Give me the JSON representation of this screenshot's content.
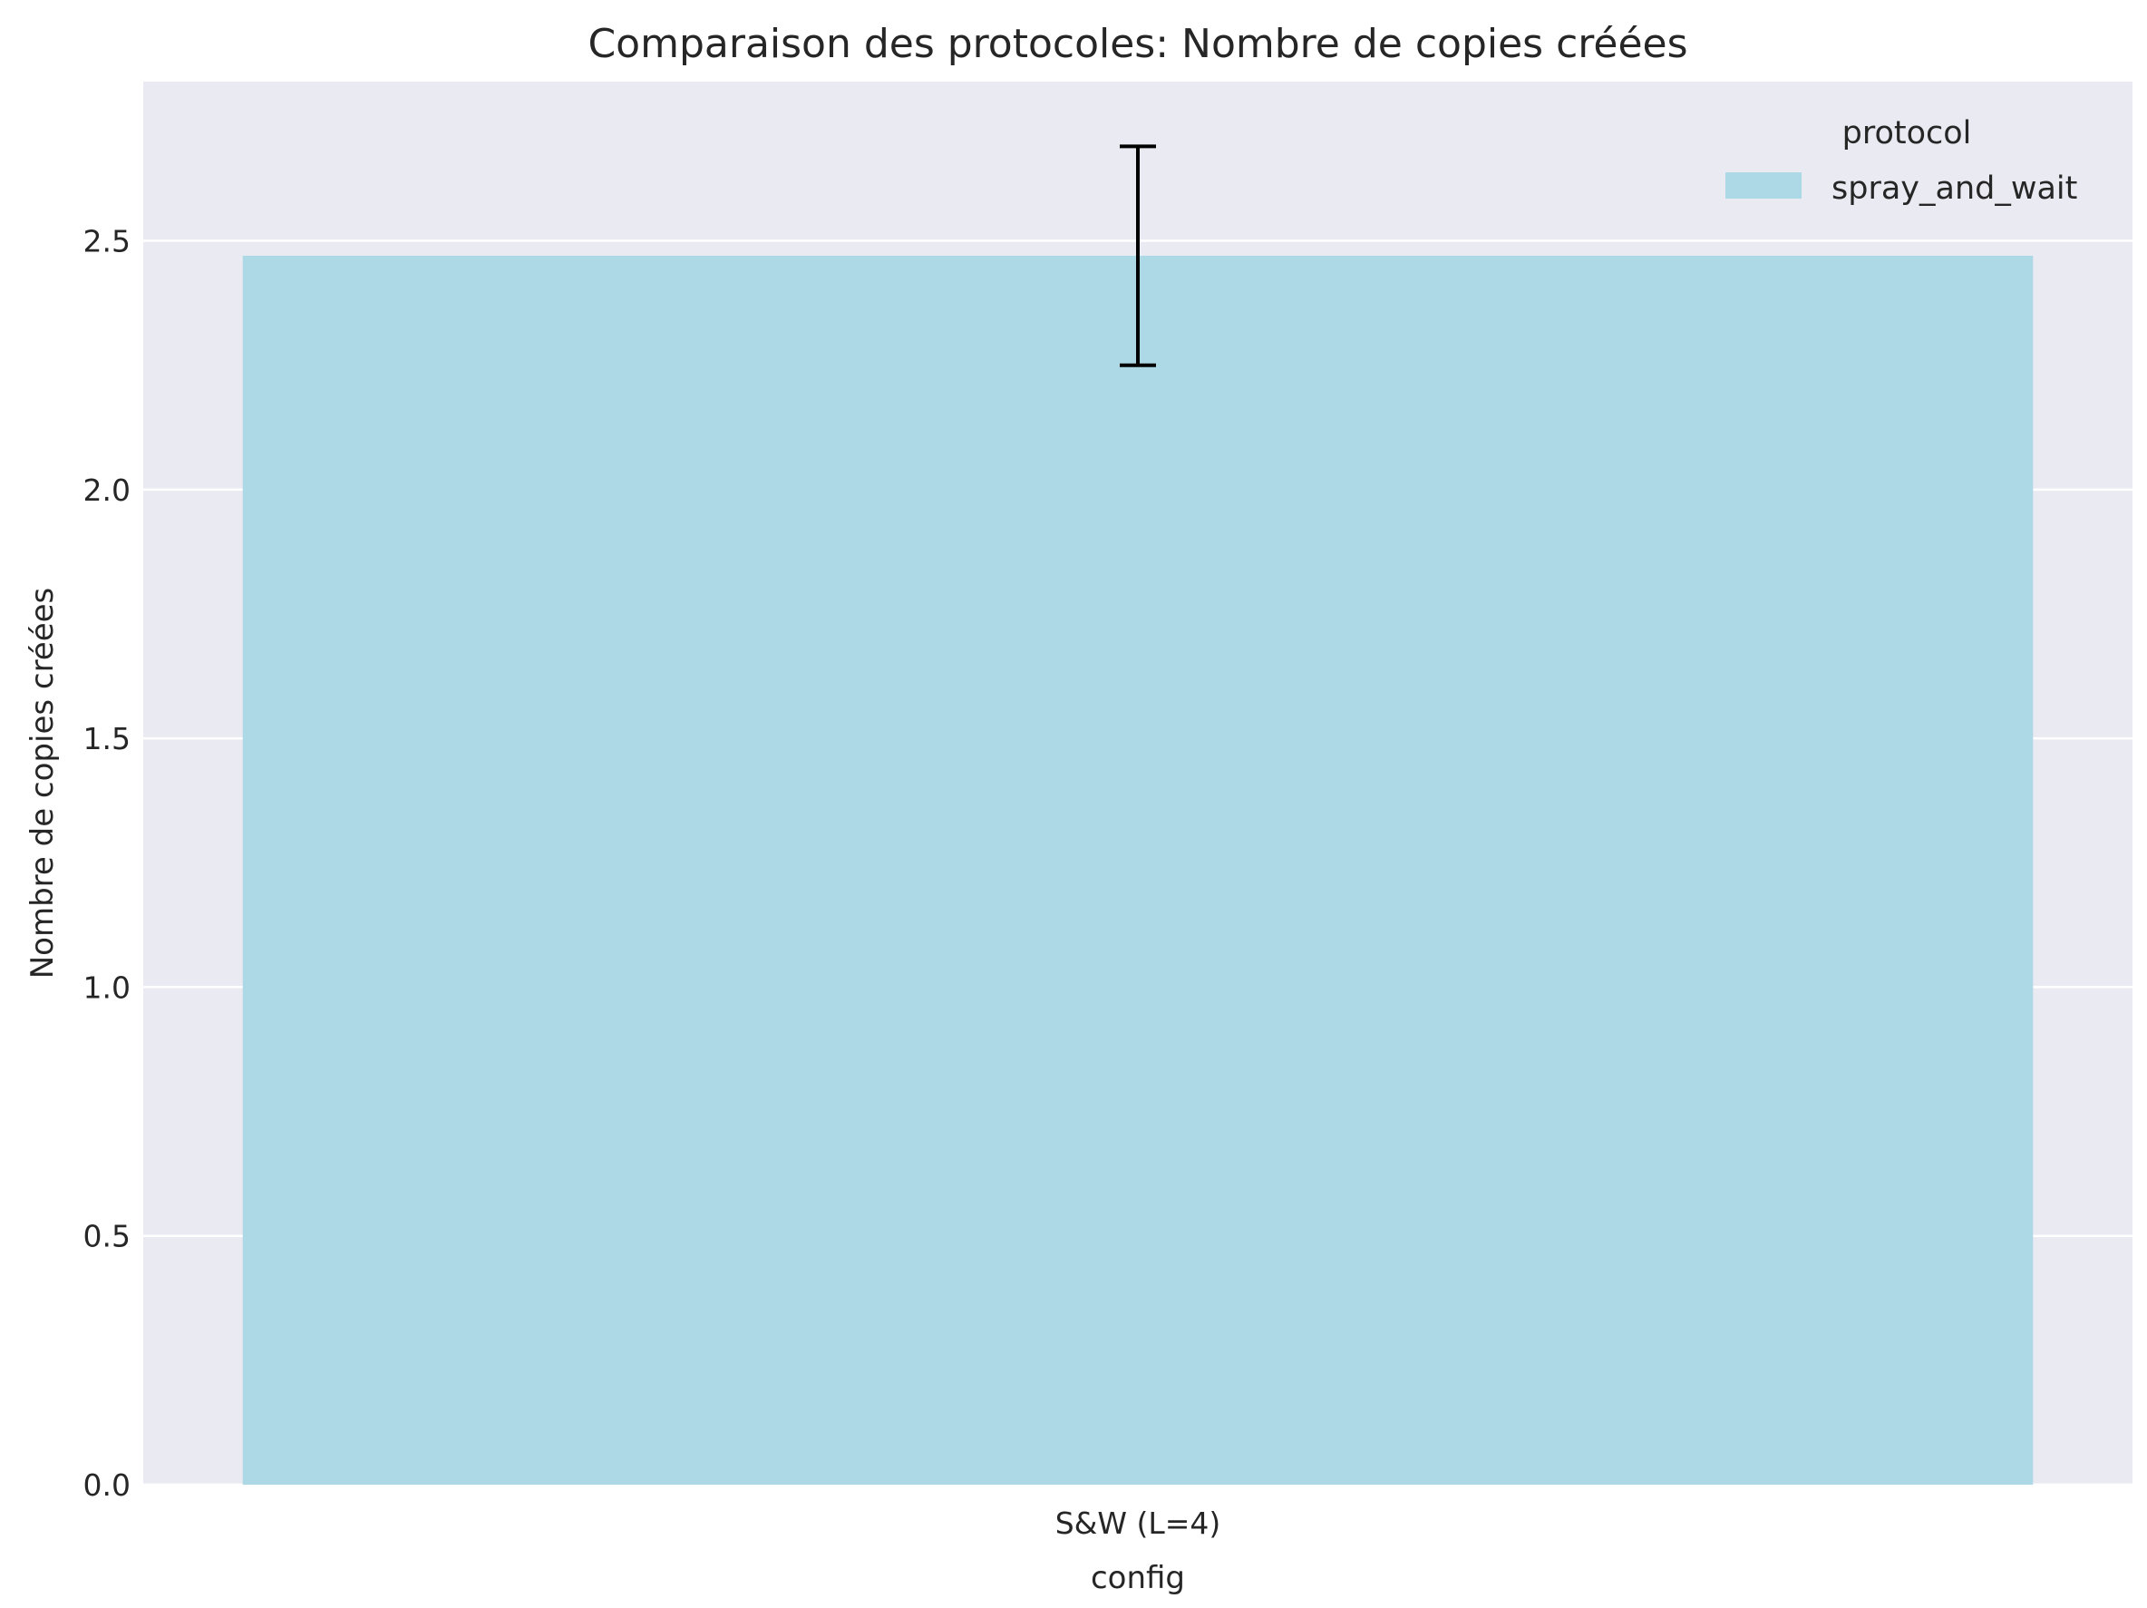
{
  "chart_data": {
    "type": "bar",
    "title": "Comparaison des protocoles: Nombre de copies créées",
    "xlabel": "config",
    "ylabel": "Nombre de copies créées",
    "categories": [
      "S&W (L=4)"
    ],
    "series": [
      {
        "name": "spray_and_wait",
        "values": [
          2.47
        ],
        "error_low": [
          2.25
        ],
        "error_high": [
          2.69
        ],
        "color": "#add8e6"
      }
    ],
    "ylim": [
      0,
      2.82
    ],
    "yticks": [
      0.0,
      0.5,
      1.0,
      1.5,
      2.0,
      2.5
    ],
    "ytick_labels": [
      "0.0",
      "0.5",
      "1.0",
      "1.5",
      "2.0",
      "2.5"
    ],
    "grid": true,
    "legend": {
      "title": "protocol",
      "placement": "top-right"
    },
    "colors": {
      "plot_background": "#eaeaf2",
      "grid": "#ffffff",
      "error_bar": "#000000"
    }
  }
}
